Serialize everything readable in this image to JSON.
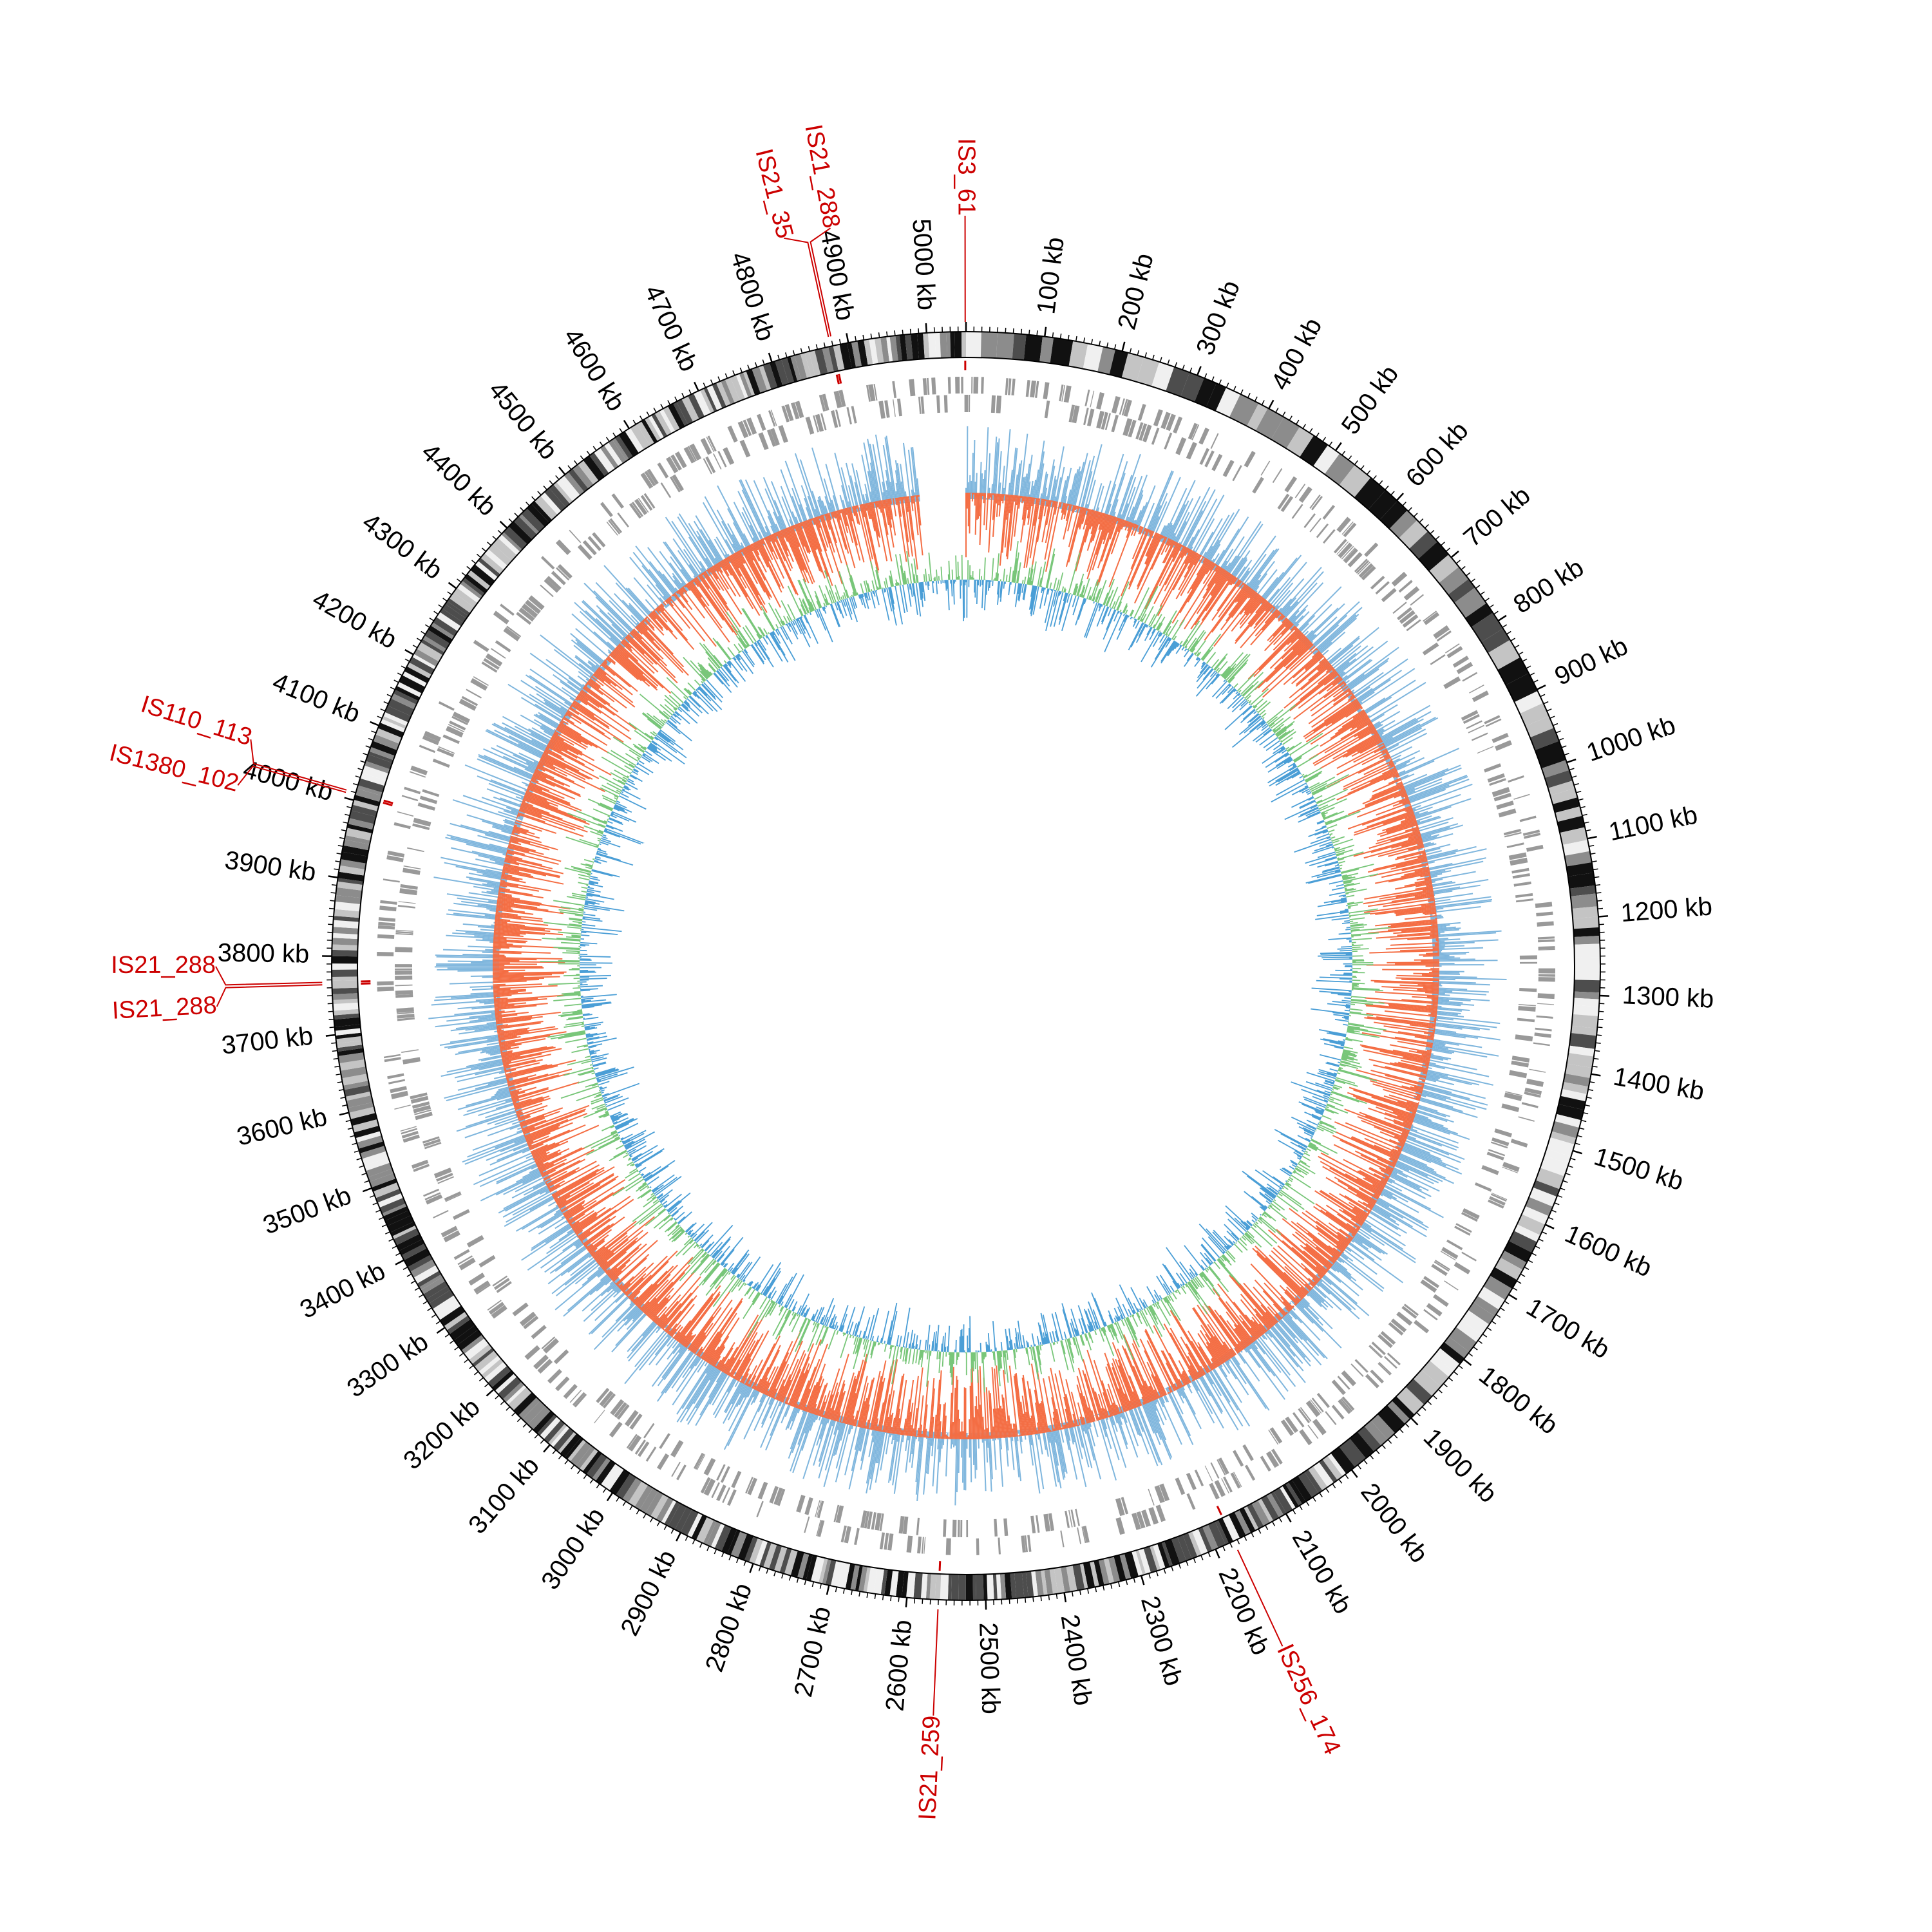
{
  "chart_data": {
    "type": "circular-genome-map",
    "genome_length_kb": 5050,
    "scale_unit": "kb",
    "tick_labels": [
      {
        "kb": 100,
        "label": "100 kb"
      },
      {
        "kb": 200,
        "label": "200 kb"
      },
      {
        "kb": 300,
        "label": "300 kb"
      },
      {
        "kb": 400,
        "label": "400 kb"
      },
      {
        "kb": 500,
        "label": "500 kb"
      },
      {
        "kb": 600,
        "label": "600 kb"
      },
      {
        "kb": 700,
        "label": "700 kb"
      },
      {
        "kb": 800,
        "label": "800 kb"
      },
      {
        "kb": 900,
        "label": "900 kb"
      },
      {
        "kb": 1000,
        "label": "1000 kb"
      },
      {
        "kb": 1100,
        "label": "1100 kb"
      },
      {
        "kb": 1200,
        "label": "1200 kb"
      },
      {
        "kb": 1300,
        "label": "1300 kb"
      },
      {
        "kb": 1400,
        "label": "1400 kb"
      },
      {
        "kb": 1500,
        "label": "1500 kb"
      },
      {
        "kb": 1600,
        "label": "1600 kb"
      },
      {
        "kb": 1700,
        "label": "1700 kb"
      },
      {
        "kb": 1800,
        "label": "1800 kb"
      },
      {
        "kb": 1900,
        "label": "1900 kb"
      },
      {
        "kb": 2000,
        "label": "2000 kb"
      },
      {
        "kb": 2100,
        "label": "2100 kb"
      },
      {
        "kb": 2200,
        "label": "2200 kb"
      },
      {
        "kb": 2300,
        "label": "2300 kb"
      },
      {
        "kb": 2400,
        "label": "2400 kb"
      },
      {
        "kb": 2500,
        "label": "2500 kb"
      },
      {
        "kb": 2600,
        "label": "2600 kb"
      },
      {
        "kb": 2700,
        "label": "2700 kb"
      },
      {
        "kb": 2800,
        "label": "2800 kb"
      },
      {
        "kb": 2900,
        "label": "2900 kb"
      },
      {
        "kb": 3000,
        "label": "3000 kb"
      },
      {
        "kb": 3100,
        "label": "3100 kb"
      },
      {
        "kb": 3200,
        "label": "3200 kb"
      },
      {
        "kb": 3300,
        "label": "3300 kb"
      },
      {
        "kb": 3400,
        "label": "3400 kb"
      },
      {
        "kb": 3500,
        "label": "3500 kb"
      },
      {
        "kb": 3600,
        "label": "3600 kb"
      },
      {
        "kb": 3700,
        "label": "3700 kb"
      },
      {
        "kb": 3800,
        "label": "3800 kb"
      },
      {
        "kb": 3900,
        "label": "3900 kb"
      },
      {
        "kb": 4000,
        "label": "4000 kb"
      },
      {
        "kb": 4100,
        "label": "4100 kb"
      },
      {
        "kb": 4200,
        "label": "4200 kb"
      },
      {
        "kb": 4300,
        "label": "4300 kb"
      },
      {
        "kb": 4400,
        "label": "4400 kb"
      },
      {
        "kb": 4500,
        "label": "4500 kb"
      },
      {
        "kb": 4600,
        "label": "4600 kb"
      },
      {
        "kb": 4700,
        "label": "4700 kb"
      },
      {
        "kb": 4800,
        "label": "4800 kb"
      },
      {
        "kb": 4900,
        "label": "4900 kb"
      },
      {
        "kb": 5000,
        "label": "5000 kb"
      }
    ],
    "insertion_sequences": [
      {
        "name": "IS3_61",
        "kb": 5049
      },
      {
        "name": "IS21_288",
        "kb": 4880
      },
      {
        "name": "IS21_35",
        "kb": 4877
      },
      {
        "name": "IS110_113",
        "kb": 4010
      },
      {
        "name": "IS1380_102",
        "kb": 4007
      },
      {
        "name": "IS21_288",
        "kb": 3767
      },
      {
        "name": "IS21_288",
        "kb": 3764
      },
      {
        "name": "IS21_259",
        "kb": 2560
      },
      {
        "name": "IS256_174",
        "kb": 2175
      }
    ],
    "tracks": [
      {
        "id": "karyotype",
        "kind": "ideogram",
        "palette": [
          "#111111",
          "#4d4d4d",
          "#8c8c8c",
          "#c4c4c4",
          "#f0f0f0"
        ]
      },
      {
        "id": "genes",
        "kind": "tiles",
        "color": "#999999"
      },
      {
        "id": "skew",
        "kind": "signed-histogram",
        "positive_color": "#7fb6dd",
        "negative_color": "#f46d43",
        "gap_kb": [
          4970,
          5050
        ]
      },
      {
        "id": "gc",
        "kind": "signed-histogram",
        "positive_color": "#78c679",
        "negative_color": "#4a9ed6"
      },
      {
        "id": "blocks",
        "kind": "band",
        "color": "#0b4483"
      }
    ],
    "colors": {
      "is_label": "#cc0000",
      "tick_label": "#000000"
    }
  }
}
